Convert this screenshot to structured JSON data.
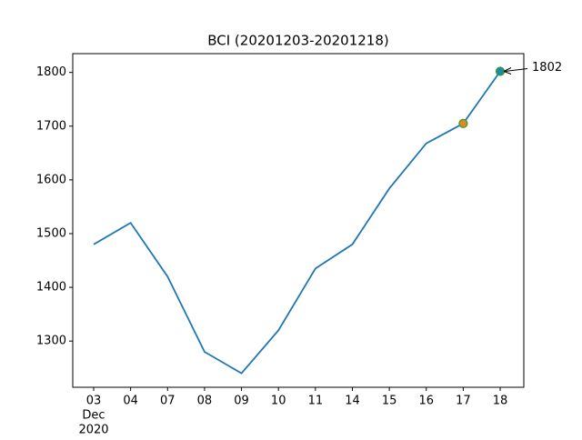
{
  "chart_data": {
    "type": "line",
    "title": "BCI (20201203-20201218)",
    "categories": [
      "03",
      "04",
      "07",
      "08",
      "09",
      "10",
      "11",
      "14",
      "15",
      "16",
      "17",
      "18"
    ],
    "x_group_label": [
      "Dec",
      "2020"
    ],
    "values": [
      1480,
      1520,
      1420,
      1280,
      1240,
      1320,
      1435,
      1480,
      1584,
      1668,
      1705,
      1802
    ],
    "color": "#1f77b4",
    "marker_colors": [
      null,
      null,
      null,
      null,
      null,
      null,
      null,
      null,
      null,
      null,
      "#e0882a",
      "#1f8aa0"
    ],
    "marker_edge_color": "#2ca02c",
    "annotate_last": true,
    "ylim": [
      1214,
      1835
    ],
    "yticks": [
      1300,
      1400,
      1500,
      1600,
      1700,
      1800
    ],
    "grid": false
  }
}
